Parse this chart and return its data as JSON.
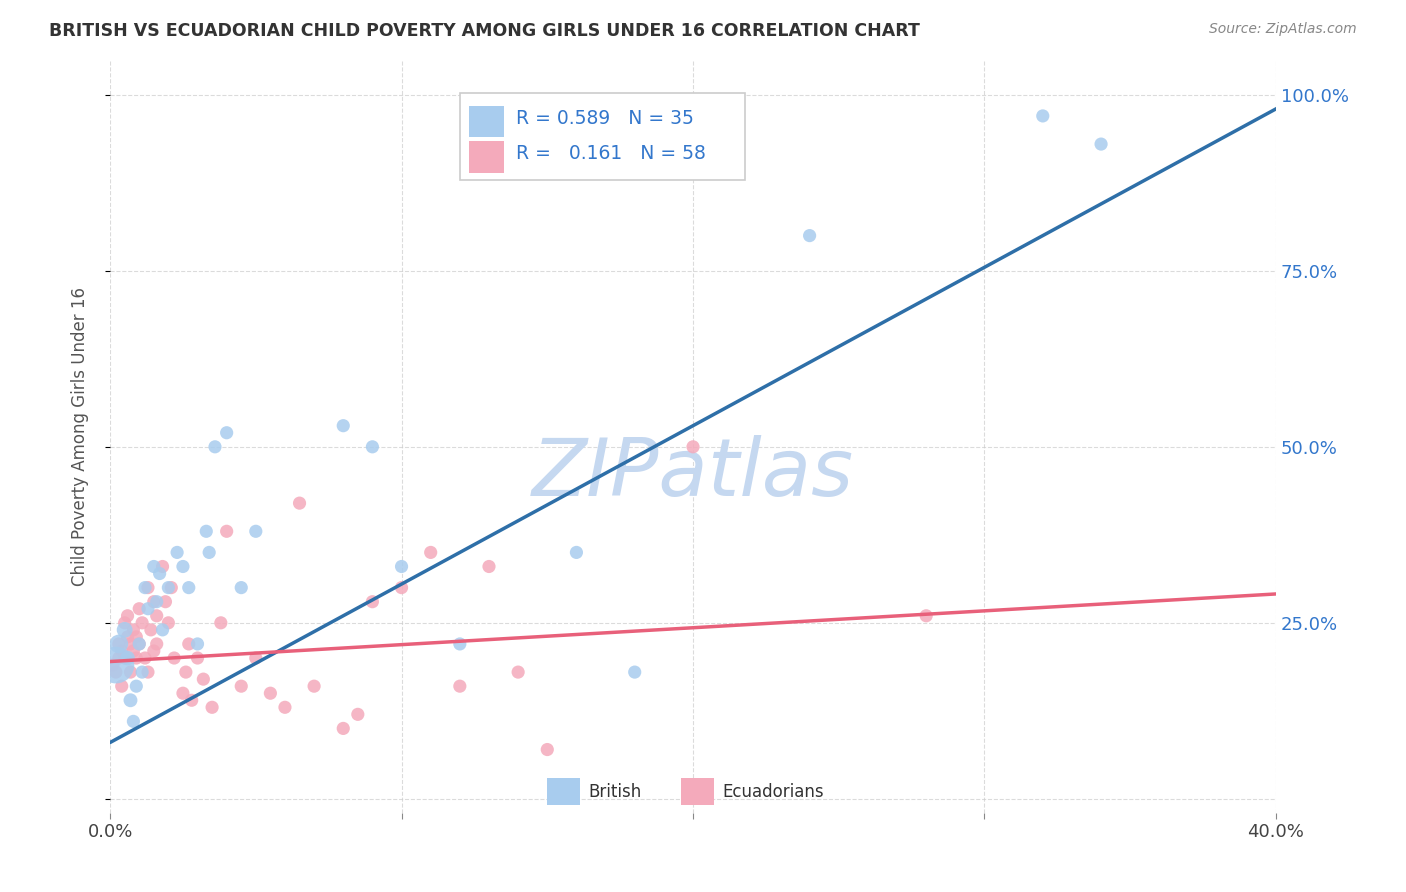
{
  "title": "BRITISH VS ECUADORIAN CHILD POVERTY AMONG GIRLS UNDER 16 CORRELATION CHART",
  "source": "Source: ZipAtlas.com",
  "ylabel": "Child Poverty Among Girls Under 16",
  "xlim": [
    0.0,
    0.4
  ],
  "ylim": [
    -0.02,
    1.05
  ],
  "british_color": "#A8CCEE",
  "ecuadorian_color": "#F4AABB",
  "british_line_color": "#2E6FA8",
  "ecuadorian_line_color": "#E8607A",
  "legend_R_british": "0.589",
  "legend_N_british": "35",
  "legend_R_ecuadorian": "0.161",
  "legend_N_ecuadorian": "58",
  "watermark": "ZIPatlas",
  "watermark_color": "#C5D8F0",
  "british_points": [
    [
      0.002,
      0.19,
      700
    ],
    [
      0.003,
      0.22,
      180
    ],
    [
      0.005,
      0.24,
      130
    ],
    [
      0.006,
      0.2,
      110
    ],
    [
      0.007,
      0.14,
      100
    ],
    [
      0.008,
      0.11,
      90
    ],
    [
      0.009,
      0.16,
      90
    ],
    [
      0.01,
      0.22,
      90
    ],
    [
      0.011,
      0.18,
      90
    ],
    [
      0.012,
      0.3,
      90
    ],
    [
      0.013,
      0.27,
      90
    ],
    [
      0.015,
      0.33,
      90
    ],
    [
      0.016,
      0.28,
      90
    ],
    [
      0.017,
      0.32,
      90
    ],
    [
      0.018,
      0.24,
      90
    ],
    [
      0.02,
      0.3,
      90
    ],
    [
      0.023,
      0.35,
      90
    ],
    [
      0.025,
      0.33,
      90
    ],
    [
      0.027,
      0.3,
      90
    ],
    [
      0.03,
      0.22,
      90
    ],
    [
      0.033,
      0.38,
      90
    ],
    [
      0.034,
      0.35,
      90
    ],
    [
      0.036,
      0.5,
      90
    ],
    [
      0.04,
      0.52,
      90
    ],
    [
      0.045,
      0.3,
      90
    ],
    [
      0.05,
      0.38,
      90
    ],
    [
      0.08,
      0.53,
      90
    ],
    [
      0.09,
      0.5,
      90
    ],
    [
      0.1,
      0.33,
      90
    ],
    [
      0.12,
      0.22,
      90
    ],
    [
      0.16,
      0.35,
      90
    ],
    [
      0.18,
      0.18,
      90
    ],
    [
      0.24,
      0.8,
      90
    ],
    [
      0.32,
      0.97,
      90
    ],
    [
      0.34,
      0.93,
      90
    ]
  ],
  "ecuadorian_points": [
    [
      0.001,
      0.19,
      90
    ],
    [
      0.002,
      0.18,
      90
    ],
    [
      0.003,
      0.22,
      90
    ],
    [
      0.003,
      0.2,
      90
    ],
    [
      0.004,
      0.16,
      90
    ],
    [
      0.004,
      0.21,
      90
    ],
    [
      0.005,
      0.25,
      90
    ],
    [
      0.005,
      0.2,
      90
    ],
    [
      0.006,
      0.23,
      90
    ],
    [
      0.006,
      0.26,
      90
    ],
    [
      0.007,
      0.22,
      90
    ],
    [
      0.007,
      0.18,
      90
    ],
    [
      0.008,
      0.24,
      90
    ],
    [
      0.008,
      0.21,
      90
    ],
    [
      0.009,
      0.23,
      90
    ],
    [
      0.009,
      0.2,
      90
    ],
    [
      0.01,
      0.27,
      90
    ],
    [
      0.01,
      0.22,
      90
    ],
    [
      0.011,
      0.25,
      90
    ],
    [
      0.012,
      0.2,
      90
    ],
    [
      0.013,
      0.3,
      90
    ],
    [
      0.013,
      0.18,
      90
    ],
    [
      0.014,
      0.24,
      90
    ],
    [
      0.015,
      0.28,
      90
    ],
    [
      0.015,
      0.21,
      90
    ],
    [
      0.016,
      0.26,
      90
    ],
    [
      0.016,
      0.22,
      90
    ],
    [
      0.018,
      0.33,
      90
    ],
    [
      0.019,
      0.28,
      90
    ],
    [
      0.02,
      0.25,
      90
    ],
    [
      0.021,
      0.3,
      90
    ],
    [
      0.022,
      0.2,
      90
    ],
    [
      0.025,
      0.15,
      90
    ],
    [
      0.026,
      0.18,
      90
    ],
    [
      0.027,
      0.22,
      90
    ],
    [
      0.028,
      0.14,
      90
    ],
    [
      0.03,
      0.2,
      90
    ],
    [
      0.032,
      0.17,
      90
    ],
    [
      0.035,
      0.13,
      90
    ],
    [
      0.038,
      0.25,
      90
    ],
    [
      0.04,
      0.38,
      90
    ],
    [
      0.045,
      0.16,
      90
    ],
    [
      0.05,
      0.2,
      90
    ],
    [
      0.055,
      0.15,
      90
    ],
    [
      0.06,
      0.13,
      90
    ],
    [
      0.065,
      0.42,
      90
    ],
    [
      0.07,
      0.16,
      90
    ],
    [
      0.08,
      0.1,
      90
    ],
    [
      0.085,
      0.12,
      90
    ],
    [
      0.09,
      0.28,
      90
    ],
    [
      0.1,
      0.3,
      90
    ],
    [
      0.11,
      0.35,
      90
    ],
    [
      0.12,
      0.16,
      90
    ],
    [
      0.13,
      0.33,
      90
    ],
    [
      0.14,
      0.18,
      90
    ],
    [
      0.15,
      0.07,
      90
    ],
    [
      0.2,
      0.5,
      90
    ],
    [
      0.28,
      0.26,
      90
    ]
  ],
  "british_reg": [
    0.08,
    2.25
  ],
  "ecuadorian_reg": [
    0.195,
    0.24
  ],
  "background_color": "#FFFFFF",
  "grid_color": "#CCCCCC"
}
